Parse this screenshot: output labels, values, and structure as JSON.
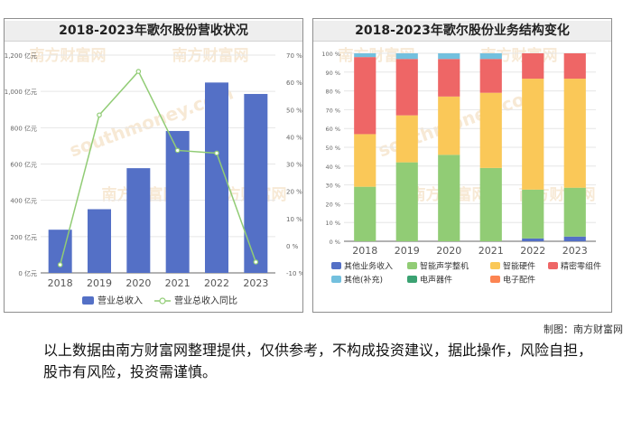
{
  "chart_data": [
    {
      "type": "bar",
      "title": "2018-2023年歌尔股份营收状况",
      "categories": [
        "2018",
        "2019",
        "2020",
        "2021",
        "2022",
        "2023"
      ],
      "series": [
        {
          "name": "营业总收入",
          "type": "bar",
          "axis": "left",
          "color": "#5470c6",
          "values": [
            238,
            351,
            577,
            782,
            1049,
            986
          ]
        },
        {
          "name": "营业总收入同比",
          "type": "line",
          "axis": "right",
          "color": "#91cc75",
          "values": [
            -7,
            48,
            64,
            35,
            34,
            -6
          ]
        }
      ],
      "y_left": {
        "ticks": [
          "0 亿元",
          "200 亿元",
          "400 亿元",
          "600 亿元",
          "800 亿元",
          "1,000 亿元",
          "1,200 亿元"
        ],
        "ylim": [
          0,
          1200
        ]
      },
      "y_right": {
        "ticks": [
          "-10 %",
          "0 %",
          "10 %",
          "20 %",
          "30 %",
          "40 %",
          "50 %",
          "60 %",
          "70 %"
        ],
        "ylim": [
          -10,
          70
        ]
      },
      "legend_position": "bottom"
    },
    {
      "type": "bar",
      "stacked": true,
      "title": "2018-2023年歌尔股份业务结构变化",
      "categories": [
        "2018",
        "2019",
        "2020",
        "2021",
        "2022",
        "2023"
      ],
      "series": [
        {
          "name": "其他业务收入",
          "color": "#5470c6",
          "values": [
            0,
            0,
            0,
            0,
            1.5,
            2.5
          ]
        },
        {
          "name": "智能声学整机",
          "color": "#91cc75",
          "values": [
            29,
            42,
            46,
            39,
            26,
            26
          ]
        },
        {
          "name": "智能硬件",
          "color": "#fac858",
          "values": [
            28,
            25,
            31,
            40,
            59,
            58
          ]
        },
        {
          "name": "精密零组件",
          "color": "#ee6666",
          "values": [
            41,
            30,
            20,
            18,
            13.5,
            13.5
          ]
        },
        {
          "name": "其他(补充)",
          "color": "#73c0de",
          "values": [
            2,
            3,
            3,
            3,
            0,
            0
          ]
        },
        {
          "name": "电声器件",
          "color": "#3ba272",
          "values": [
            0,
            0,
            0,
            0,
            0,
            0
          ]
        },
        {
          "name": "电子配件",
          "color": "#fc8452",
          "values": [
            0,
            0,
            0,
            0,
            0,
            0
          ]
        }
      ],
      "y_ticks": [
        "0 %",
        "10 %",
        "20 %",
        "30 %",
        "40 %",
        "50 %",
        "60 %",
        "70 %",
        "80 %",
        "90 %",
        "100 %"
      ],
      "ylim": [
        0,
        100
      ],
      "legend_position": "bottom"
    }
  ],
  "watermark": {
    "cn": "南方财富网",
    "en": "southmoney.com"
  },
  "credit": "制图：南方财富网",
  "disclaimer": "以上数据由南方财富网整理提供，仅供参考，不构成投资建议，据此操作，风险自担，股市有风险，投资需谨慎。"
}
